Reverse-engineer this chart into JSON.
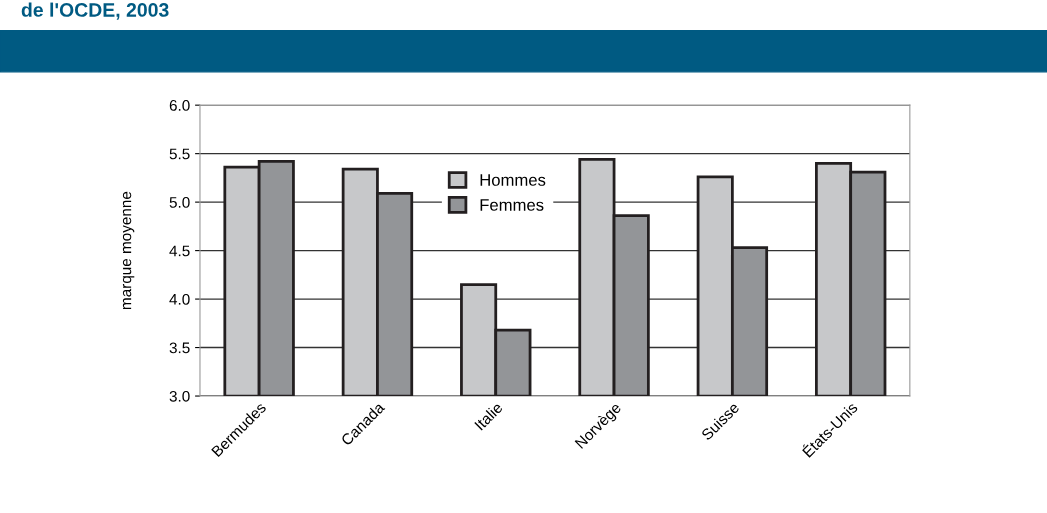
{
  "chart_data": {
    "type": "bar",
    "title": "de l'OCDE, 2003",
    "ylabel": "marque moyenne",
    "categories": [
      "Bermudes",
      "Canada",
      "Italie",
      "Norvège",
      "Suisse",
      "États-Unis"
    ],
    "series": [
      {
        "name": "Hommes",
        "color": "#c7c8ca",
        "values": [
          5.36,
          5.34,
          4.15,
          5.44,
          5.26,
          5.4
        ]
      },
      {
        "name": "Femmes",
        "color": "#939598",
        "values": [
          5.42,
          5.09,
          3.68,
          4.86,
          4.53,
          5.31
        ]
      }
    ],
    "ylim": [
      3.0,
      6.0
    ],
    "yticks": [
      {
        "value": 3.0,
        "label": "3.0"
      },
      {
        "value": 3.5,
        "label": "3.5"
      },
      {
        "value": 4.0,
        "label": "4.0"
      },
      {
        "value": 4.5,
        "label": "4.5"
      },
      {
        "value": 5.0,
        "label": "5.0"
      },
      {
        "value": 5.5,
        "label": "5.5"
      },
      {
        "value": 6.0,
        "label": "6.0"
      }
    ],
    "grid": "y",
    "legend": "top"
  }
}
